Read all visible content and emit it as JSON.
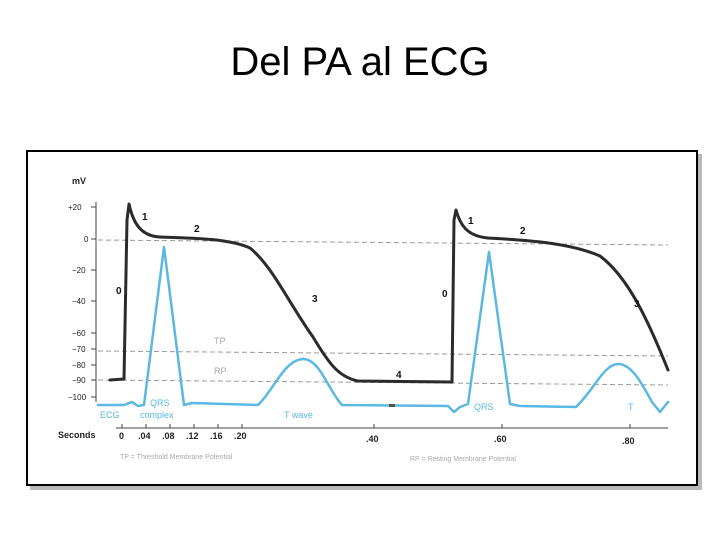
{
  "title": "Del PA al ECG",
  "y_axis": {
    "unit": "mV",
    "ticks": [
      "+20",
      "0",
      "−20",
      "−40",
      "−60",
      "−70",
      "−80",
      "−90",
      "−100"
    ]
  },
  "x_axis": {
    "label": "Seconds",
    "ticks": [
      "0",
      ".04",
      ".08",
      ".12",
      ".16",
      ".20",
      ".40",
      ".60",
      ".80"
    ]
  },
  "phase_labels": {
    "cycle1": [
      "0",
      "1",
      "2",
      "3",
      "4"
    ],
    "cycle2": [
      "0",
      "1",
      "2",
      "3"
    ]
  },
  "threshold_label": "TP",
  "resting_label": "RP",
  "ecg_labels": {
    "ecg": "ECG",
    "qrs1": "QRS",
    "complex": "complex",
    "twave": "T wave",
    "qrs2": "QRS",
    "t2": "T"
  },
  "footnotes": {
    "tp": "TP = Threshold Membrane Potential",
    "rp": "RP = Resting Membrane Potential"
  },
  "colors": {
    "action_potential": "#2b2b2b",
    "ecg": "#5ab8e2",
    "dashed": "#9a9a9a",
    "label_gray": "#a8a8a8"
  }
}
